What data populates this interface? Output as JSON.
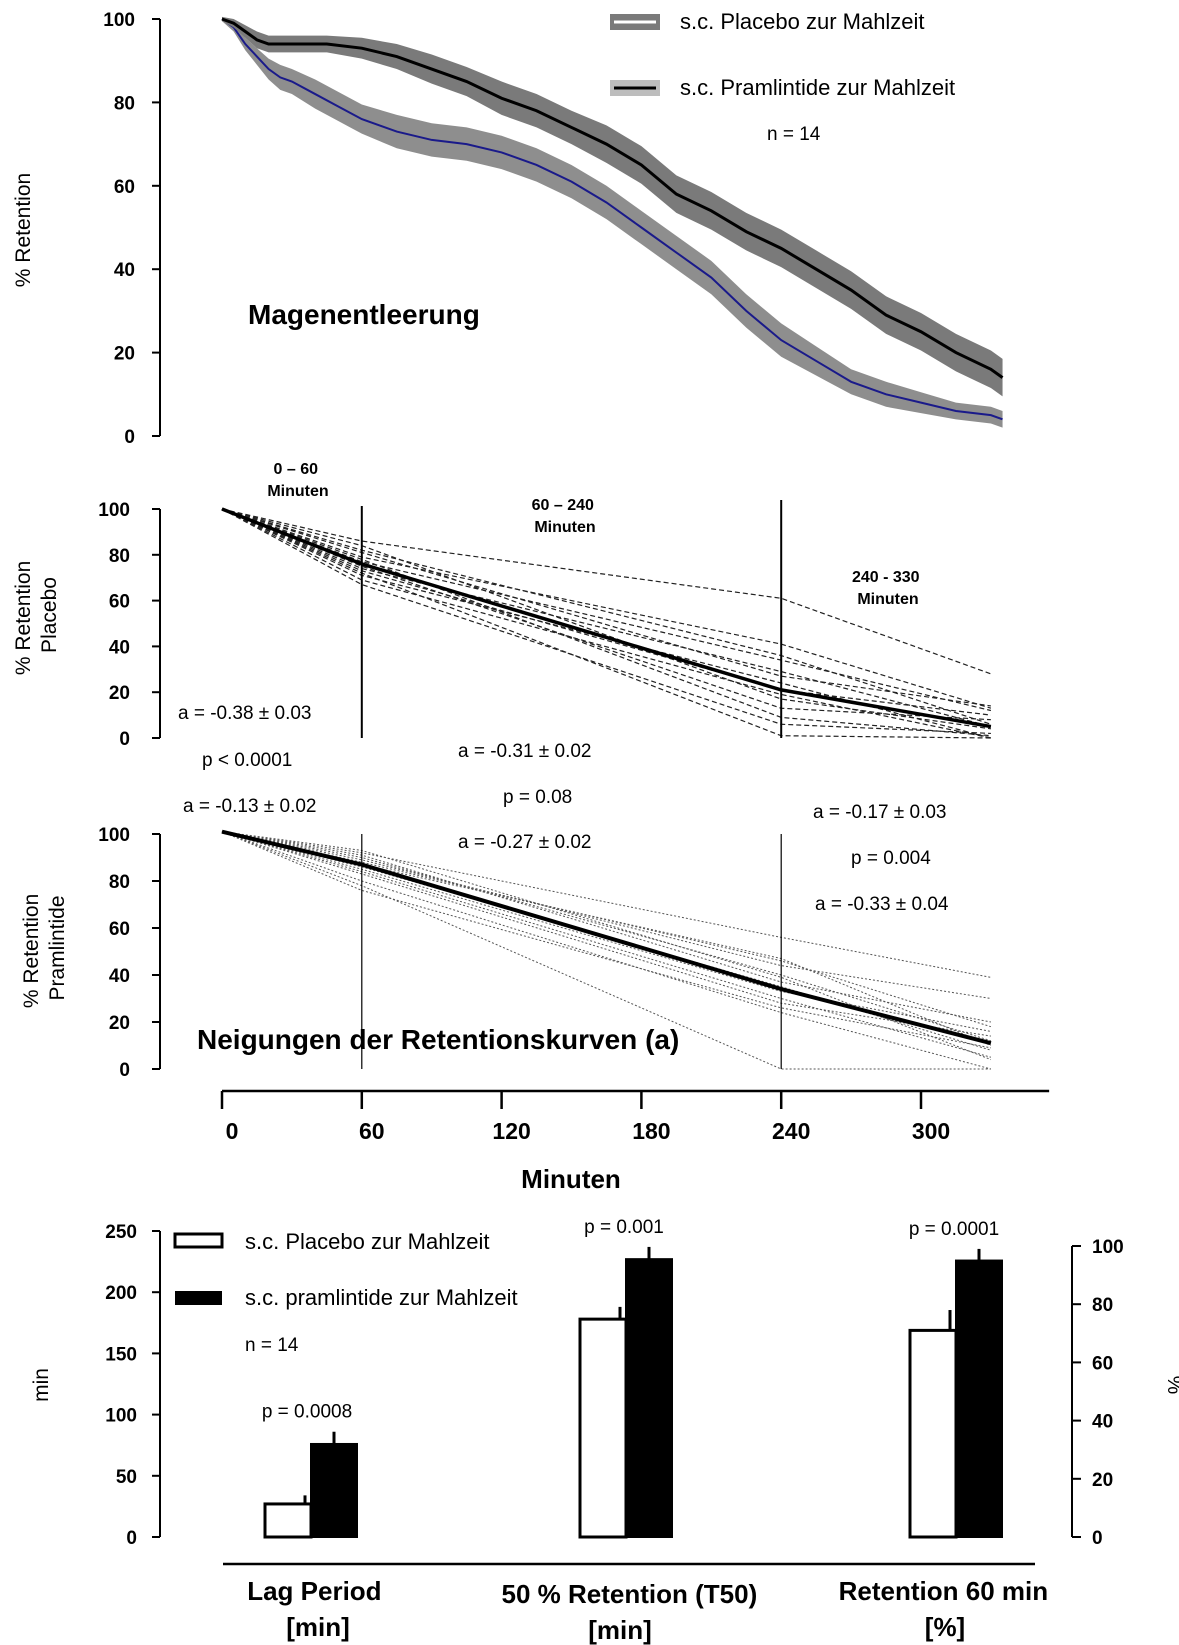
{
  "chart_data": [
    {
      "type": "line",
      "title": "Magenentleerung",
      "ylabel": "% Retention",
      "xlabel": "Minuten",
      "ylim": [
        0,
        100
      ],
      "yticks": [
        "0",
        "20",
        "40",
        "60",
        "80",
        "100"
      ],
      "legend_position": "top-right",
      "legend": [
        "s.c. Placebo zur  Mahlzeit",
        "s.c. Pramlintide zur Mahlzeit"
      ],
      "annotation": "n = 14",
      "series": [
        {
          "name": "s.c. Placebo zur  Mahlzeit",
          "color": "#1a1a8a",
          "band_color": "#7a7a7a",
          "x": [
            0,
            5,
            10,
            15,
            20,
            25,
            30,
            40,
            50,
            60,
            75,
            90,
            105,
            120,
            135,
            150,
            165,
            180,
            195,
            210,
            225,
            240,
            255,
            270,
            285,
            300,
            315,
            330,
            335
          ],
          "y": [
            100,
            98,
            94,
            91,
            88,
            86,
            85,
            82,
            79,
            76,
            73,
            71,
            70,
            68,
            65,
            61,
            56,
            50,
            44,
            38,
            30,
            23,
            18,
            13,
            10,
            8,
            6,
            5,
            4
          ],
          "error": [
            0.5,
            1,
            1.5,
            2,
            2.5,
            3,
            3,
            3.5,
            3.5,
            3.5,
            4,
            4,
            4,
            4,
            4,
            4,
            4,
            4,
            4,
            4,
            4,
            4,
            3.5,
            3,
            3,
            2.5,
            2,
            2,
            2
          ]
        },
        {
          "name": "s.c. Pramlintide zur Mahlzeit",
          "color": "#000000",
          "band_color": "#7a7a7a",
          "x": [
            0,
            5,
            10,
            15,
            20,
            30,
            45,
            60,
            75,
            90,
            105,
            120,
            135,
            150,
            165,
            180,
            195,
            210,
            225,
            240,
            255,
            270,
            285,
            300,
            315,
            330,
            335
          ],
          "y": [
            100,
            99,
            97,
            95,
            94,
            94,
            94,
            93,
            91,
            88,
            85,
            81,
            78,
            74,
            70,
            65,
            58,
            54,
            49,
            45,
            40,
            35,
            29,
            25,
            20,
            16,
            14
          ],
          "error": [
            0.5,
            1,
            1.5,
            2,
            2,
            2,
            2,
            2.5,
            3,
            3.5,
            3.5,
            4,
            4,
            4,
            4.5,
            4.5,
            4.5,
            4.5,
            4.5,
            4.5,
            4.5,
            4.5,
            4.5,
            4.5,
            4.5,
            4.5,
            4.5
          ]
        }
      ]
    },
    {
      "type": "line",
      "ylabel": [
        "% ",
        "Retention",
        "Placebo"
      ],
      "ylim": [
        0,
        100
      ],
      "yticks": [
        "0",
        "20",
        "40",
        "60",
        "80",
        "100"
      ],
      "segment_boundaries": [
        60,
        240
      ],
      "segment_headers": [
        [
          "0 – 60",
          "Minuten"
        ],
        [
          "60 – 240",
          "Minuten"
        ],
        [
          "240 - 330",
          "Minuten"
        ]
      ],
      "mean_line": {
        "x": [
          0,
          60,
          240,
          330
        ],
        "y": [
          100,
          76,
          21,
          5
        ]
      },
      "individual_lines_y": [
        [
          100,
          77,
          34,
          12
        ],
        [
          100,
          74,
          29,
          5
        ],
        [
          100,
          79,
          41,
          13
        ],
        [
          100,
          71,
          24,
          0
        ],
        [
          100,
          82,
          36,
          6
        ],
        [
          100,
          69,
          19,
          0
        ],
        [
          100,
          86,
          61,
          28
        ],
        [
          100,
          75,
          13,
          8
        ],
        [
          100,
          78,
          9,
          1
        ],
        [
          100,
          72,
          1,
          0
        ],
        [
          100,
          81,
          27,
          14
        ],
        [
          100,
          67,
          6,
          2
        ],
        [
          100,
          84,
          17,
          4
        ],
        [
          100,
          73,
          21,
          10
        ]
      ],
      "slopes": [
        "a = -0.38 ± 0.03",
        "a = -0.31 ± 0.02"
      ]
    },
    {
      "type": "line",
      "title": "Neigungen der Retentionskurven (a)",
      "ylabel": [
        "% Retention",
        "Pramlintide"
      ],
      "xlabel": "Minuten",
      "ylim": [
        0,
        100
      ],
      "yticks": [
        "0",
        "20",
        "40",
        "60",
        "80",
        "100"
      ],
      "xticks": [
        "0",
        "60",
        "120",
        "180",
        "240",
        "300"
      ],
      "xlim": [
        0,
        355
      ],
      "segment_boundaries": [
        60,
        240
      ],
      "mean_line": {
        "x": [
          0,
          60,
          240,
          330
        ],
        "y": [
          101,
          87,
          34,
          11
        ]
      },
      "individual_lines_y": [
        [
          101,
          90,
          40,
          12
        ],
        [
          101,
          86,
          35,
          8
        ],
        [
          101,
          88,
          46,
          18
        ],
        [
          101,
          84,
          30,
          5
        ],
        [
          101,
          92,
          56,
          39
        ],
        [
          101,
          80,
          24,
          0
        ],
        [
          101,
          89,
          44,
          30
        ],
        [
          101,
          83,
          28,
          14
        ],
        [
          101,
          78,
          0,
          0
        ],
        [
          101,
          91,
          37,
          20
        ],
        [
          101,
          85,
          33,
          16
        ],
        [
          101,
          87,
          47,
          10
        ],
        [
          101,
          93,
          39,
          4
        ],
        [
          101,
          76,
          26,
          9
        ]
      ],
      "slopes": [
        "a  = -0.13 ± 0.02",
        "a  = -0.27 ± 0.02",
        "a = -0.33 ± 0.04"
      ]
    }
  ],
  "comparisons": [
    {
      "label": "p < 0.0001"
    },
    {
      "label": "p = 0.08"
    },
    {
      "label": "p = 0.004"
    }
  ],
  "placebo_slope_late": "a = -0.17 ± 0.03",
  "bar_chart": {
    "type": "bar",
    "ylabel_left": "min",
    "ylabel_right": "%",
    "ylim_left": [
      0,
      250
    ],
    "ylim_right": [
      0,
      100
    ],
    "yticks_left": [
      "0",
      "50",
      "100",
      "150",
      "200",
      "250"
    ],
    "yticks_right": [
      "0",
      "20",
      "40",
      "60",
      "80",
      "100"
    ],
    "legend_position": "top-left",
    "legend": [
      "s.c. Placebo zur Mahlzeit",
      "s.c. pramlintide zur Mahlzeit"
    ],
    "legend_fill": [
      "#ffffff",
      "#000000"
    ],
    "annotation": "n = 14",
    "categories": [
      {
        "label": [
          "Lag Period",
          "[min]"
        ],
        "axis": "left",
        "unit": "min",
        "placebo": 27,
        "placebo_err": 7,
        "pramlintide": 76,
        "pramlintide_err": 10,
        "p": "p = 0.0008"
      },
      {
        "label": [
          "50 % Retention (T50)",
          "[min]"
        ],
        "axis": "left",
        "unit": "min",
        "placebo": 178,
        "placebo_err": 10,
        "pramlintide": 227,
        "pramlintide_err": 10,
        "p": "p = 0.001"
      },
      {
        "label": [
          "Retention 60 min",
          "[%]"
        ],
        "axis": "right",
        "unit": "%",
        "placebo": 71,
        "placebo_err": 7,
        "pramlintide": 95,
        "pramlintide_err": 4,
        "p": "p = 0.0001"
      }
    ]
  }
}
